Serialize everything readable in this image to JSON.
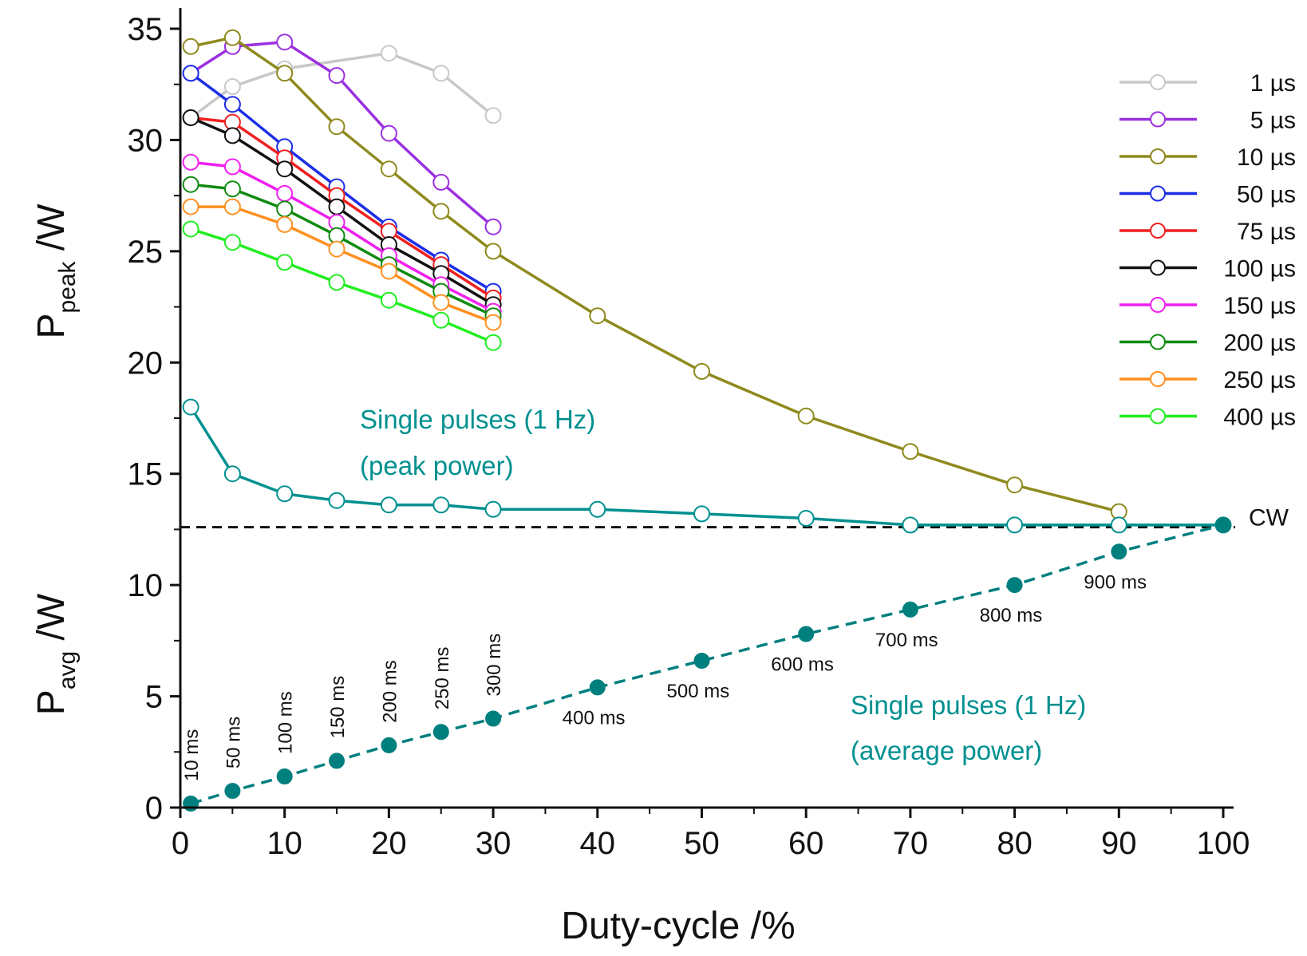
{
  "chart_data": {
    "type": "line",
    "xlabel": "Duty-cycle /%",
    "ylabel_top": {
      "main": "P",
      "sub": "peak",
      "unit": " /W"
    },
    "ylabel_bottom": {
      "main": "P",
      "sub": "avg",
      "unit": " /W"
    },
    "xlim": [
      0,
      100
    ],
    "ylim": [
      0,
      35
    ],
    "xticks": [
      0,
      10,
      20,
      30,
      40,
      50,
      60,
      70,
      80,
      90,
      100
    ],
    "xtick_labels": [
      "0",
      "10",
      "20",
      "30",
      "40",
      "50",
      "60",
      "70",
      "80",
      "90",
      "100"
    ],
    "yticks": [
      0,
      5,
      10,
      15,
      20,
      25,
      30,
      35
    ],
    "ytick_labels": [
      "0",
      "5",
      "10",
      "15",
      "20",
      "25",
      "30",
      "35"
    ],
    "legend_position": "top-right",
    "series": [
      {
        "name": "1 µs",
        "color": "#c8c8c8",
        "x": [
          1,
          5,
          10,
          20,
          25,
          30
        ],
        "y": [
          31.0,
          32.4,
          33.2,
          33.9,
          33.0,
          31.1
        ]
      },
      {
        "name": "5 µs",
        "color": "#9b30e0",
        "x": [
          1,
          5,
          10,
          15,
          20,
          25,
          30
        ],
        "y": [
          33.0,
          34.2,
          34.4,
          32.9,
          30.3,
          28.1,
          26.1
        ]
      },
      {
        "name": "10 µs",
        "color": "#8f8a1e",
        "x": [
          1,
          5,
          10,
          15,
          20,
          25,
          30,
          40,
          50,
          60,
          70,
          80,
          90
        ],
        "y": [
          34.2,
          34.6,
          33.0,
          30.6,
          28.7,
          26.8,
          25.0,
          22.1,
          19.6,
          17.6,
          16.0,
          14.5,
          13.3
        ]
      },
      {
        "name": "50 µs",
        "color": "#1c2ee6",
        "x": [
          1,
          5,
          10,
          15,
          20,
          25,
          30
        ],
        "y": [
          33.0,
          31.6,
          29.7,
          27.9,
          26.1,
          24.6,
          23.2
        ]
      },
      {
        "name": "75 µs",
        "color": "#f02020",
        "x": [
          1,
          5,
          10,
          15,
          20,
          25,
          30
        ],
        "y": [
          31.0,
          30.8,
          29.2,
          27.5,
          25.9,
          24.4,
          22.9
        ]
      },
      {
        "name": "100 µs",
        "color": "#111111",
        "x": [
          1,
          5,
          10,
          15,
          20,
          25,
          30
        ],
        "y": [
          31.0,
          30.2,
          28.7,
          27.0,
          25.3,
          24.0,
          22.6
        ]
      },
      {
        "name": "150 µs",
        "color": "#f020f0",
        "x": [
          1,
          5,
          10,
          15,
          20,
          25,
          30
        ],
        "y": [
          29.0,
          28.8,
          27.6,
          26.3,
          24.8,
          23.5,
          22.3
        ]
      },
      {
        "name": "200 µs",
        "color": "#108a10",
        "x": [
          1,
          5,
          10,
          15,
          20,
          25,
          30
        ],
        "y": [
          28.0,
          27.8,
          26.9,
          25.7,
          24.4,
          23.2,
          22.1
        ]
      },
      {
        "name": "250 µs",
        "color": "#ff9020",
        "x": [
          1,
          5,
          10,
          15,
          20,
          25,
          30
        ],
        "y": [
          27.0,
          27.0,
          26.2,
          25.1,
          24.1,
          22.7,
          21.8
        ]
      },
      {
        "name": "400 µs",
        "color": "#20ee20",
        "x": [
          1,
          5,
          10,
          15,
          20,
          25,
          30
        ],
        "y": [
          26.0,
          25.4,
          24.5,
          23.6,
          22.8,
          21.9,
          20.9
        ]
      },
      {
        "name": "Single pulses (1 Hz) peak power",
        "color": "#009090",
        "x": [
          1,
          5,
          10,
          15,
          20,
          25,
          30,
          40,
          50,
          60,
          70,
          80,
          90,
          100
        ],
        "y": [
          18.0,
          15.0,
          14.1,
          13.8,
          13.6,
          13.6,
          13.4,
          13.4,
          13.2,
          13.0,
          12.7,
          12.7,
          12.7,
          12.7
        ]
      },
      {
        "name": "Single pulses (1 Hz) average power",
        "color": "#007f7f",
        "dashed": true,
        "filled": true,
        "x": [
          1,
          5,
          10,
          15,
          20,
          25,
          30,
          40,
          50,
          60,
          70,
          80,
          90,
          100
        ],
        "y": [
          0.18,
          0.75,
          1.4,
          2.1,
          2.8,
          3.4,
          4.0,
          5.4,
          6.6,
          7.8,
          8.9,
          10.0,
          11.5,
          12.7
        ]
      }
    ],
    "cw_line": {
      "label": "CW",
      "y": 12.6
    },
    "annotations": {
      "peak": {
        "line1": "Single pulses (1 Hz)",
        "line2": "(peak power)"
      },
      "avg": {
        "line1": "Single pulses (1 Hz)",
        "line2": "(average power)"
      }
    },
    "pulse_labels": [
      {
        "text": "10 ms",
        "x": 1
      },
      {
        "text": "50 ms",
        "x": 5
      },
      {
        "text": "100 ms",
        "x": 10
      },
      {
        "text": "150 ms",
        "x": 15
      },
      {
        "text": "200 ms",
        "x": 20
      },
      {
        "text": "250 ms",
        "x": 25
      },
      {
        "text": "300 ms",
        "x": 30
      },
      {
        "text": "400 ms",
        "x": 40
      },
      {
        "text": "500 ms",
        "x": 50
      },
      {
        "text": "600 ms",
        "x": 60
      },
      {
        "text": "700 ms",
        "x": 70
      },
      {
        "text": "800 ms",
        "x": 80
      },
      {
        "text": "900 ms",
        "x": 90
      }
    ]
  }
}
